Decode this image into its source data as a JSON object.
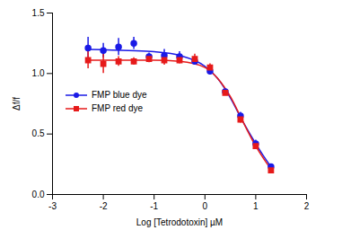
{
  "chart_data": {
    "type": "scatter",
    "xlabel": "Log [Tetrodotoxin] µM",
    "ylabel": "Δf/f",
    "xlim": [
      -3,
      2
    ],
    "xticks": [
      -3,
      -2,
      -1,
      0,
      1,
      2
    ],
    "ylim": [
      0,
      1.5
    ],
    "yticks": [
      {
        "value": 0,
        "label": "0.0"
      },
      {
        "value": 0.5,
        "label": "0.5"
      },
      {
        "value": 1,
        "label": "1.0"
      },
      {
        "value": 1.5,
        "label": "1.5"
      }
    ],
    "legend": "left",
    "x": [
      -2.3,
      -2.0,
      -1.7,
      -1.4,
      -1.1,
      -0.8,
      -0.5,
      -0.2,
      0.1,
      0.4,
      0.7,
      1.0,
      1.3
    ],
    "fit_x": [
      -2.3,
      -1.5,
      -1.0,
      -0.5,
      0.0,
      0.25,
      0.5,
      0.75,
      1.0,
      1.15,
      1.3
    ],
    "series": [
      {
        "name": "FMP blue dye",
        "color": "#1a1ae6",
        "marker": "circle",
        "values": [
          1.21,
          1.19,
          1.22,
          1.25,
          1.14,
          1.15,
          1.14,
          1.1,
          1.02,
          0.85,
          0.65,
          0.42,
          0.23
        ],
        "error": [
          0.09,
          0.06,
          0.07,
          0.05,
          0.03,
          0.05,
          0.04,
          0.03,
          0.03,
          0.02,
          0.03,
          0.03,
          0.02
        ],
        "fit": [
          1.2,
          1.19,
          1.18,
          1.15,
          1.06,
          0.96,
          0.8,
          0.6,
          0.42,
          0.32,
          0.23
        ]
      },
      {
        "name": "FMP red dye",
        "color": "#e61a1a",
        "marker": "square",
        "values": [
          1.11,
          1.08,
          1.1,
          1.1,
          1.12,
          1.11,
          1.11,
          1.12,
          1.05,
          0.84,
          0.62,
          0.4,
          0.2
        ],
        "error": [
          0.07,
          0.08,
          0.04,
          0.03,
          0.03,
          0.04,
          0.03,
          0.04,
          0.03,
          0.02,
          0.03,
          0.02,
          0.02
        ],
        "fit": [
          1.11,
          1.11,
          1.11,
          1.1,
          1.05,
          0.96,
          0.81,
          0.6,
          0.4,
          0.3,
          0.21
        ]
      }
    ]
  }
}
